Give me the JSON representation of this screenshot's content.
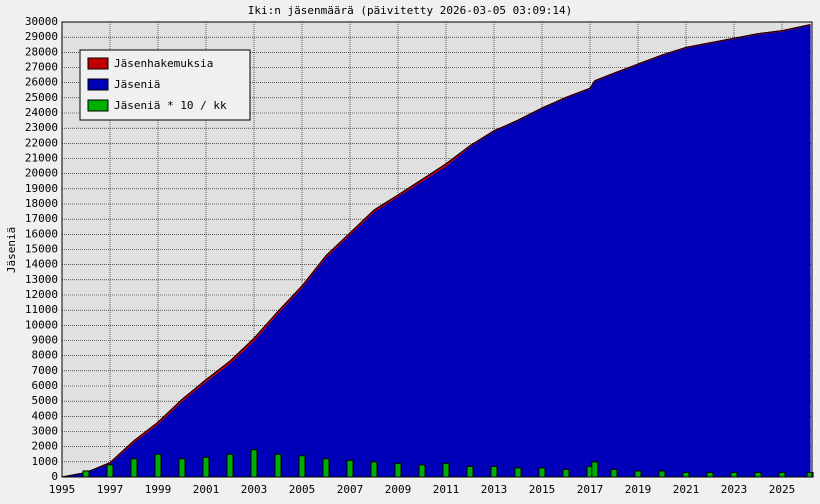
{
  "chart_data": {
    "type": "area",
    "title": "Iki:n jäsenmäärä (päivitetty 2026-03-05 03:09:14)",
    "y_label": "Jäseniä",
    "x": [
      1995,
      1996,
      1997,
      1998,
      1999,
      2000,
      2001,
      2002,
      2003,
      2004,
      2005,
      2006,
      2007,
      2008,
      2009,
      2010,
      2011,
      2012,
      2013,
      2014,
      2015,
      2016,
      2017,
      2017.2,
      2018,
      2019,
      2020,
      2021,
      2022,
      2023,
      2024,
      2025,
      2026.17
    ],
    "series": [
      {
        "name": "Jäsenhakemuksia",
        "color": "#c00000",
        "kind": "area",
        "values": [
          0,
          0,
          50,
          100,
          120,
          120,
          120,
          150,
          150,
          120,
          100,
          100,
          100,
          100,
          100,
          120,
          150,
          50,
          30,
          30,
          30,
          30,
          30,
          30,
          30,
          30,
          30,
          30,
          30,
          30,
          30,
          30,
          30
        ]
      },
      {
        "name": "Jäseniä",
        "color": "#0000b8",
        "kind": "area",
        "values": [
          0,
          300,
          900,
          2300,
          3500,
          5000,
          6300,
          7500,
          9000,
          10800,
          12500,
          14500,
          16000,
          17500,
          18500,
          19500,
          20500,
          21800,
          22800,
          23500,
          24300,
          25000,
          25600,
          26100,
          26600,
          27200,
          27800,
          28300,
          28600,
          28900,
          29200,
          29400,
          29800
        ]
      },
      {
        "name": "Jäseniä * 10 / kk",
        "color": "#00b000",
        "kind": "bar",
        "values": [
          0,
          400,
          800,
          1200,
          1500,
          1200,
          1300,
          1500,
          1800,
          1500,
          1400,
          1200,
          1100,
          1000,
          900,
          800,
          900,
          700,
          700,
          600,
          600,
          500,
          700,
          1000,
          500,
          400,
          400,
          300,
          300,
          300,
          300,
          300,
          300
        ]
      }
    ],
    "xlim": [
      1995,
      2026.25
    ],
    "ylim": [
      0,
      30000
    ],
    "xticks": [
      1995,
      1997,
      1999,
      2001,
      2003,
      2005,
      2007,
      2009,
      2011,
      2013,
      2015,
      2017,
      2019,
      2021,
      2023,
      2025
    ],
    "yticks": [
      0,
      1000,
      2000,
      3000,
      4000,
      5000,
      6000,
      7000,
      8000,
      9000,
      10000,
      11000,
      12000,
      13000,
      14000,
      15000,
      16000,
      17000,
      18000,
      19000,
      20000,
      21000,
      22000,
      23000,
      24000,
      25000,
      26000,
      27000,
      28000,
      29000,
      30000
    ],
    "grid": true,
    "legend": "upper left"
  }
}
